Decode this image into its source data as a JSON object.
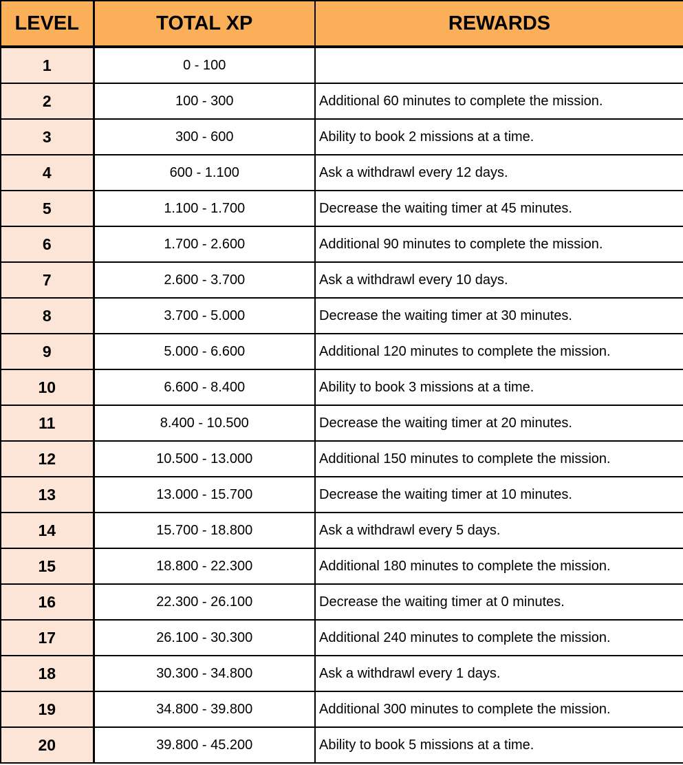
{
  "headers": {
    "level": "LEVEL",
    "total_xp": "TOTAL XP",
    "rewards": "REWARDS"
  },
  "colors": {
    "header_bg": "#FBAF58",
    "level_bg": "#FCE4D6",
    "border": "#000000"
  },
  "rows": [
    {
      "level": "1",
      "xp": "0 - 100",
      "reward": ""
    },
    {
      "level": "2",
      "xp": "100 - 300",
      "reward": "Additional 60 minutes to complete the mission."
    },
    {
      "level": "3",
      "xp": "300 - 600",
      "reward": "Ability to book 2 missions at a time."
    },
    {
      "level": "4",
      "xp": "600 - 1.100",
      "reward": "Ask a withdrawl every 12 days."
    },
    {
      "level": "5",
      "xp": "1.100 - 1.700",
      "reward": "Decrease the waiting timer at 45 minutes."
    },
    {
      "level": "6",
      "xp": "1.700 - 2.600",
      "reward": "Additional 90 minutes to complete the mission."
    },
    {
      "level": "7",
      "xp": "2.600 - 3.700",
      "reward": "Ask a withdrawl every 10 days."
    },
    {
      "level": "8",
      "xp": "3.700 - 5.000",
      "reward": "Decrease the waiting timer at 30 minutes."
    },
    {
      "level": "9",
      "xp": "5.000 - 6.600",
      "reward": "Additional 120 minutes to complete the mission."
    },
    {
      "level": "10",
      "xp": "6.600 - 8.400",
      "reward": "Ability to book 3 missions at a time."
    },
    {
      "level": "11",
      "xp": "8.400 - 10.500",
      "reward": "Decrease the waiting timer at 20 minutes."
    },
    {
      "level": "12",
      "xp": "10.500 - 13.000",
      "reward": "Additional 150 minutes to complete the mission."
    },
    {
      "level": "13",
      "xp": "13.000 - 15.700",
      "reward": "Decrease the waiting timer at 10 minutes."
    },
    {
      "level": "14",
      "xp": "15.700 - 18.800",
      "reward": "Ask a withdrawl every 5 days."
    },
    {
      "level": "15",
      "xp": "18.800 - 22.300",
      "reward": "Additional 180 minutes to complete the mission."
    },
    {
      "level": "16",
      "xp": "22.300 - 26.100",
      "reward": "Decrease the waiting timer at 0 minutes."
    },
    {
      "level": "17",
      "xp": "26.100 - 30.300",
      "reward": "Additional 240 minutes to complete the mission."
    },
    {
      "level": "18",
      "xp": "30.300 - 34.800",
      "reward": "Ask a withdrawl every 1 days."
    },
    {
      "level": "19",
      "xp": "34.800 - 39.800",
      "reward": "Additional 300 minutes to complete the mission."
    },
    {
      "level": "20",
      "xp": "39.800 - 45.200",
      "reward": "Ability to book 5 missions at a time."
    }
  ]
}
